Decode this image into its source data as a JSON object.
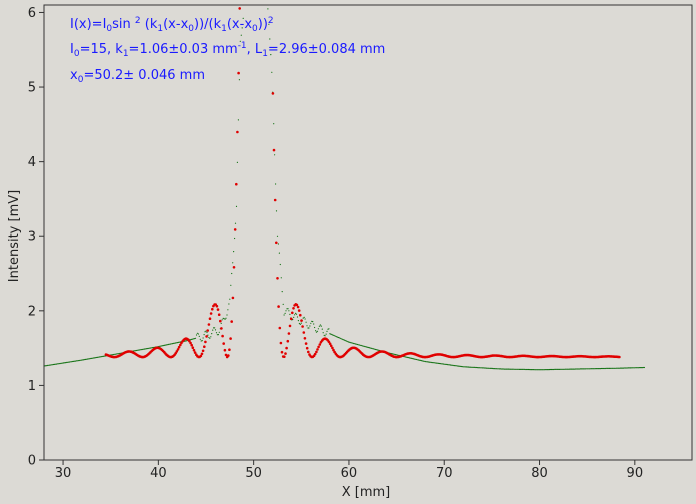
{
  "chart_data": {
    "type": "scatter",
    "xlabel": "X [mm]",
    "ylabel": "Intensity [mV]",
    "xlim": [
      28,
      96
    ],
    "ylim": [
      0,
      6.1
    ],
    "x_ticks": [
      30,
      40,
      50,
      60,
      70,
      80,
      90
    ],
    "y_ticks": [
      0,
      1,
      2,
      3,
      4,
      5,
      6
    ],
    "grid": false,
    "annotations": {
      "line1": {
        "a": "I(x)=I",
        "b": "0",
        "c": "sin ",
        "d": "2",
        "e": " (k",
        "f": "1",
        "g": "(x-x",
        "h": "0",
        "i": "))/(k",
        "j": "1",
        "k": "(x-x",
        "l": "0",
        "m": "))",
        "n": "2"
      },
      "line2": {
        "a": "I",
        "b": "0",
        "c": "=15,  k",
        "d": "1",
        "e": "=1.06±0.03 mm",
        "f": "-1",
        "g": ",   L",
        "h": "1",
        "i": "=2.96±0.084 mm"
      },
      "line3": {
        "a": "x",
        "b": "0",
        "c": "=50.2±   0.046 mm"
      }
    },
    "series": [
      {
        "color": "#e00000",
        "kind": "fit",
        "model": {
          "I0": 15,
          "k1": 1.06,
          "x0": 50.2,
          "baseline": 1.38,
          "gap_start": 48.8,
          "gap_end": 51.9
        },
        "x_range": [
          34.5,
          88.5
        ]
      },
      {
        "color": "#107010",
        "kind": "measured",
        "x": [
          28,
          32,
          36,
          40,
          43,
          45,
          46.5,
          47.5,
          48.2,
          48.6,
          49.0,
          51.5,
          52.0,
          52.5,
          53.2,
          54.5,
          57,
          60,
          64,
          68,
          72,
          76,
          80,
          84,
          88,
          91
        ],
        "y": [
          1.26,
          1.34,
          1.43,
          1.52,
          1.6,
          1.67,
          1.75,
          2.1,
          3.4,
          5.6,
          6.1,
          6.1,
          4.9,
          3.0,
          2.0,
          1.9,
          1.75,
          1.58,
          1.44,
          1.32,
          1.25,
          1.22,
          1.21,
          1.22,
          1.23,
          1.24
        ]
      }
    ]
  }
}
